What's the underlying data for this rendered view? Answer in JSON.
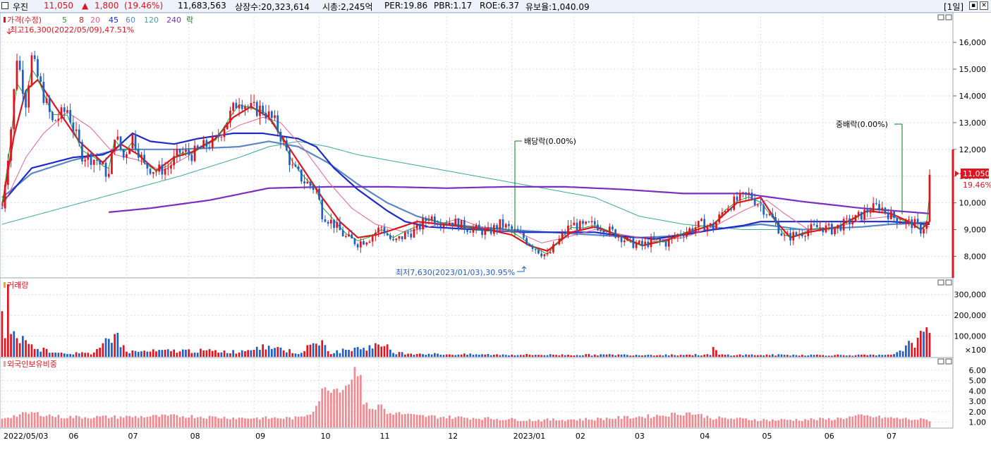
{
  "header": {
    "name": "우진",
    "price": "11,050",
    "change_arrow": "▲",
    "change": "1,800",
    "change_pct": "(19.46%)",
    "volume": "11,683,563",
    "listed_shares": "상장수:20,323,614",
    "market_cap": "시총:2,245억",
    "per": "PER:19.86",
    "pbr": "PBR:1.17",
    "roe": "ROE:6.37",
    "reserve": "유보율:1,040.09",
    "period": "[1일]",
    "colors": {
      "up": "#e0141e",
      "down": "#1f5fc8"
    }
  },
  "legend": [
    {
      "label": "가격(수정)",
      "color": "#e0141e"
    },
    {
      "label": "5",
      "color": "#17a52a"
    },
    {
      "label": "8",
      "color": "#e0141e"
    },
    {
      "label": "20",
      "color": "#e8608f"
    },
    {
      "label": "45",
      "color": "#1c2cc4"
    },
    {
      "label": "60",
      "color": "#5b87c4"
    },
    {
      "label": "120",
      "color": "#3aa89a"
    },
    {
      "label": "240",
      "color": "#7b2fbf"
    },
    {
      "label": "락",
      "color": "#0b7a1d"
    }
  ],
  "annotations": {
    "high": "최고16,300(2022/05/09),47.51%",
    "low": "최저7,630(2023/01/03),30.95%",
    "dividend": "배당락(0.00%)",
    "bonus": "중배락(0.00%)",
    "last_price": "11,050",
    "last_pct": "19.46%",
    "volume_title": "거래량",
    "foreign_title": "외국인보유비중"
  },
  "chart_data": {
    "type": "candlestick",
    "x_ticks": [
      "2022/05/03",
      "06",
      "07",
      "08",
      "09",
      "10",
      "11",
      "12",
      "2023/01",
      "02",
      "03",
      "04",
      "05",
      "06",
      "07"
    ],
    "price_axis": {
      "ticks": [
        "16,000",
        "15,000",
        "14,000",
        "13,000",
        "12,000",
        "11,000",
        "10,000",
        "9,000",
        "8,000"
      ],
      "ylim": [
        7300,
        16900
      ]
    },
    "volume_axis": {
      "ticks": [
        "300,000",
        "200,000",
        "100,000"
      ],
      "unit": "×100",
      "ylim": [
        0,
        3600
      ]
    },
    "foreign_axis": {
      "ticks": [
        "6.00",
        "5.00",
        "4.00",
        "3.00",
        "2.00",
        "1.00"
      ],
      "ylim": [
        0.5,
        6.8
      ]
    },
    "price_path": [
      [
        0,
        9800
      ],
      [
        3,
        12800
      ],
      [
        5,
        15500
      ],
      [
        8,
        13800
      ],
      [
        10,
        15400
      ],
      [
        14,
        14000
      ],
      [
        17,
        13000
      ],
      [
        22,
        13500
      ],
      [
        27,
        11800
      ],
      [
        32,
        11600
      ],
      [
        36,
        11000
      ],
      [
        38,
        12600
      ],
      [
        41,
        11700
      ],
      [
        44,
        12500
      ],
      [
        48,
        11400
      ],
      [
        52,
        11200
      ],
      [
        56,
        11300
      ],
      [
        60,
        11900
      ],
      [
        64,
        11800
      ],
      [
        68,
        12100
      ],
      [
        72,
        12300
      ],
      [
        76,
        13100
      ],
      [
        80,
        13900
      ],
      [
        84,
        13500
      ],
      [
        88,
        13500
      ],
      [
        92,
        13000
      ],
      [
        94,
        12500
      ],
      [
        98,
        11300
      ],
      [
        102,
        10800
      ],
      [
        106,
        10500
      ],
      [
        108,
        9600
      ],
      [
        112,
        9200
      ],
      [
        116,
        8700
      ],
      [
        120,
        8500
      ],
      [
        124,
        8700
      ],
      [
        128,
        9100
      ],
      [
        132,
        8500
      ],
      [
        136,
        8800
      ],
      [
        140,
        9000
      ],
      [
        144,
        9500
      ],
      [
        148,
        9300
      ],
      [
        152,
        9300
      ],
      [
        156,
        9100
      ],
      [
        160,
        9000
      ],
      [
        164,
        8900
      ],
      [
        168,
        9200
      ],
      [
        172,
        9000
      ],
      [
        176,
        8700
      ],
      [
        180,
        8300
      ],
      [
        184,
        8000
      ],
      [
        188,
        8600
      ],
      [
        192,
        9200
      ],
      [
        196,
        9100
      ],
      [
        200,
        9200
      ],
      [
        204,
        9000
      ],
      [
        208,
        8800
      ],
      [
        212,
        8500
      ],
      [
        216,
        8400
      ],
      [
        220,
        8600
      ],
      [
        224,
        8500
      ],
      [
        228,
        8800
      ],
      [
        232,
        9000
      ],
      [
        236,
        9200
      ],
      [
        240,
        9100
      ],
      [
        244,
        9800
      ],
      [
        248,
        10100
      ],
      [
        252,
        10300
      ],
      [
        256,
        9900
      ],
      [
        260,
        9400
      ],
      [
        264,
        8700
      ],
      [
        268,
        8800
      ],
      [
        272,
        9000
      ],
      [
        276,
        9100
      ],
      [
        280,
        9000
      ],
      [
        284,
        9200
      ],
      [
        288,
        9400
      ],
      [
        292,
        9700
      ],
      [
        296,
        9900
      ],
      [
        300,
        9500
      ],
      [
        304,
        9300
      ],
      [
        308,
        9200
      ],
      [
        310,
        9000
      ],
      [
        312,
        9250
      ],
      [
        313,
        11050
      ]
    ],
    "volume_path": [
      [
        0,
        2200
      ],
      [
        1,
        900
      ],
      [
        2,
        3500
      ],
      [
        3,
        1100
      ],
      [
        5,
        900
      ],
      [
        8,
        800
      ],
      [
        10,
        600
      ],
      [
        14,
        350
      ],
      [
        20,
        200
      ],
      [
        30,
        150
      ],
      [
        38,
        1100
      ],
      [
        42,
        250
      ],
      [
        46,
        250
      ],
      [
        56,
        280
      ],
      [
        60,
        300
      ],
      [
        80,
        250
      ],
      [
        88,
        600
      ],
      [
        100,
        180
      ],
      [
        108,
        800
      ],
      [
        110,
        200
      ],
      [
        130,
        600
      ],
      [
        132,
        200
      ],
      [
        150,
        120
      ],
      [
        180,
        100
      ],
      [
        239,
        100
      ],
      [
        240,
        400
      ],
      [
        242,
        100
      ],
      [
        300,
        80
      ],
      [
        313,
        1150
      ]
    ],
    "foreign_path": [
      [
        0,
        1.4
      ],
      [
        10,
        1.9
      ],
      [
        20,
        1.5
      ],
      [
        40,
        1.5
      ],
      [
        60,
        1.6
      ],
      [
        80,
        1.4
      ],
      [
        100,
        1.4
      ],
      [
        104,
        1.9
      ],
      [
        106,
        2.6
      ],
      [
        108,
        3.9
      ],
      [
        110,
        4.4
      ],
      [
        112,
        4.2
      ],
      [
        116,
        4.5
      ],
      [
        118,
        5.4
      ],
      [
        119,
        6.0
      ],
      [
        121,
        6.1
      ],
      [
        122,
        2.7
      ],
      [
        126,
        2.3
      ],
      [
        128,
        2.7
      ],
      [
        130,
        1.8
      ],
      [
        132,
        1.9
      ],
      [
        140,
        1.6
      ],
      [
        160,
        1.4
      ],
      [
        180,
        1.2
      ],
      [
        200,
        1.3
      ],
      [
        220,
        1.6
      ],
      [
        232,
        1.9
      ],
      [
        240,
        1.4
      ],
      [
        260,
        1.2
      ],
      [
        280,
        1.3
      ],
      [
        290,
        1.6
      ],
      [
        300,
        1.4
      ],
      [
        313,
        1.2
      ]
    ],
    "ma_paths": {
      "ma45": [
        [
          0,
          10000
        ],
        [
          10,
          11300
        ],
        [
          24,
          11700
        ],
        [
          34,
          11800
        ],
        [
          38,
          12000
        ],
        [
          44,
          12600
        ],
        [
          50,
          12300
        ],
        [
          58,
          12200
        ],
        [
          66,
          12400
        ],
        [
          78,
          12600
        ],
        [
          88,
          12600
        ],
        [
          100,
          12400
        ],
        [
          106,
          12100
        ],
        [
          112,
          11300
        ],
        [
          120,
          10500
        ],
        [
          130,
          9700
        ],
        [
          136,
          9300
        ],
        [
          144,
          9100
        ],
        [
          160,
          9000
        ],
        [
          176,
          8900
        ],
        [
          190,
          8900
        ],
        [
          200,
          8900
        ],
        [
          210,
          8750
        ],
        [
          220,
          8650
        ],
        [
          230,
          8800
        ],
        [
          240,
          9000
        ],
        [
          250,
          9150
        ],
        [
          256,
          9300
        ],
        [
          266,
          9300
        ],
        [
          276,
          9300
        ],
        [
          290,
          9300
        ],
        [
          300,
          9300
        ],
        [
          313,
          9200
        ]
      ],
      "ma60": [
        [
          0,
          10200
        ],
        [
          10,
          11100
        ],
        [
          24,
          11600
        ],
        [
          40,
          12000
        ],
        [
          60,
          12000
        ],
        [
          80,
          12100
        ],
        [
          90,
          12300
        ],
        [
          100,
          12100
        ],
        [
          110,
          11500
        ],
        [
          120,
          10700
        ],
        [
          130,
          10000
        ],
        [
          140,
          9500
        ],
        [
          150,
          9200
        ],
        [
          170,
          9000
        ],
        [
          200,
          8800
        ],
        [
          215,
          8700
        ],
        [
          225,
          8750
        ],
        [
          240,
          9000
        ],
        [
          256,
          9200
        ],
        [
          270,
          9000
        ],
        [
          290,
          9100
        ],
        [
          300,
          9200
        ],
        [
          313,
          9250
        ]
      ],
      "ma120": [
        [
          0,
          9200
        ],
        [
          20,
          9800
        ],
        [
          40,
          10400
        ],
        [
          60,
          11000
        ],
        [
          80,
          11700
        ],
        [
          90,
          12100
        ],
        [
          100,
          12300
        ],
        [
          110,
          12100
        ],
        [
          120,
          11800
        ],
        [
          140,
          11400
        ],
        [
          160,
          11000
        ],
        [
          180,
          10600
        ],
        [
          200,
          10200
        ],
        [
          215,
          9500
        ],
        [
          230,
          9200
        ],
        [
          250,
          9000
        ],
        [
          270,
          9000
        ],
        [
          290,
          9100
        ],
        [
          313,
          9300
        ]
      ],
      "ma240": [
        [
          36,
          9650
        ],
        [
          50,
          9800
        ],
        [
          70,
          10100
        ],
        [
          90,
          10550
        ],
        [
          110,
          10600
        ],
        [
          130,
          10600
        ],
        [
          150,
          10550
        ],
        [
          170,
          10600
        ],
        [
          190,
          10600
        ],
        [
          210,
          10500
        ],
        [
          230,
          10350
        ],
        [
          250,
          10350
        ],
        [
          270,
          10050
        ],
        [
          290,
          9800
        ],
        [
          313,
          9600
        ]
      ],
      "ma20": [
        [
          0,
          9800
        ],
        [
          8,
          11700
        ],
        [
          14,
          12600
        ],
        [
          22,
          13400
        ],
        [
          30,
          12800
        ],
        [
          38,
          11800
        ],
        [
          46,
          11600
        ],
        [
          54,
          11200
        ],
        [
          62,
          11700
        ],
        [
          72,
          12400
        ],
        [
          80,
          12900
        ],
        [
          88,
          13200
        ],
        [
          94,
          13000
        ],
        [
          102,
          12000
        ],
        [
          110,
          10800
        ],
        [
          118,
          9800
        ],
        [
          126,
          9200
        ],
        [
          136,
          8900
        ],
        [
          144,
          9100
        ],
        [
          154,
          9400
        ],
        [
          164,
          9000
        ],
        [
          174,
          8900
        ],
        [
          182,
          8500
        ],
        [
          190,
          8700
        ],
        [
          200,
          9000
        ],
        [
          210,
          8800
        ],
        [
          220,
          8600
        ],
        [
          230,
          8700
        ],
        [
          240,
          9100
        ],
        [
          250,
          9700
        ],
        [
          258,
          10100
        ],
        [
          264,
          9600
        ],
        [
          272,
          9000
        ],
        [
          282,
          9100
        ],
        [
          292,
          9400
        ],
        [
          300,
          9500
        ],
        [
          313,
          9100
        ]
      ],
      "ma8": [
        [
          0,
          9900
        ],
        [
          4,
          12500
        ],
        [
          8,
          14200
        ],
        [
          12,
          14600
        ],
        [
          18,
          13600
        ],
        [
          26,
          12300
        ],
        [
          34,
          11500
        ],
        [
          40,
          12200
        ],
        [
          46,
          11800
        ],
        [
          52,
          11200
        ],
        [
          58,
          11700
        ],
        [
          64,
          11900
        ],
        [
          72,
          12400
        ],
        [
          78,
          13200
        ],
        [
          84,
          13600
        ],
        [
          90,
          13200
        ],
        [
          96,
          12200
        ],
        [
          102,
          11200
        ],
        [
          108,
          10200
        ],
        [
          114,
          9300
        ],
        [
          120,
          8700
        ],
        [
          126,
          8800
        ],
        [
          132,
          9000
        ],
        [
          140,
          9300
        ],
        [
          148,
          9200
        ],
        [
          156,
          9100
        ],
        [
          164,
          9000
        ],
        [
          172,
          8800
        ],
        [
          178,
          8400
        ],
        [
          184,
          8200
        ],
        [
          192,
          8900
        ],
        [
          200,
          9100
        ],
        [
          208,
          8800
        ],
        [
          216,
          8400
        ],
        [
          224,
          8600
        ],
        [
          232,
          8900
        ],
        [
          240,
          9200
        ],
        [
          248,
          10000
        ],
        [
          256,
          10200
        ],
        [
          262,
          9200
        ],
        [
          266,
          8700
        ],
        [
          272,
          8900
        ],
        [
          282,
          9100
        ],
        [
          292,
          9700
        ],
        [
          300,
          9600
        ],
        [
          306,
          9300
        ],
        [
          310,
          9000
        ],
        [
          313,
          9300
        ]
      ]
    }
  }
}
